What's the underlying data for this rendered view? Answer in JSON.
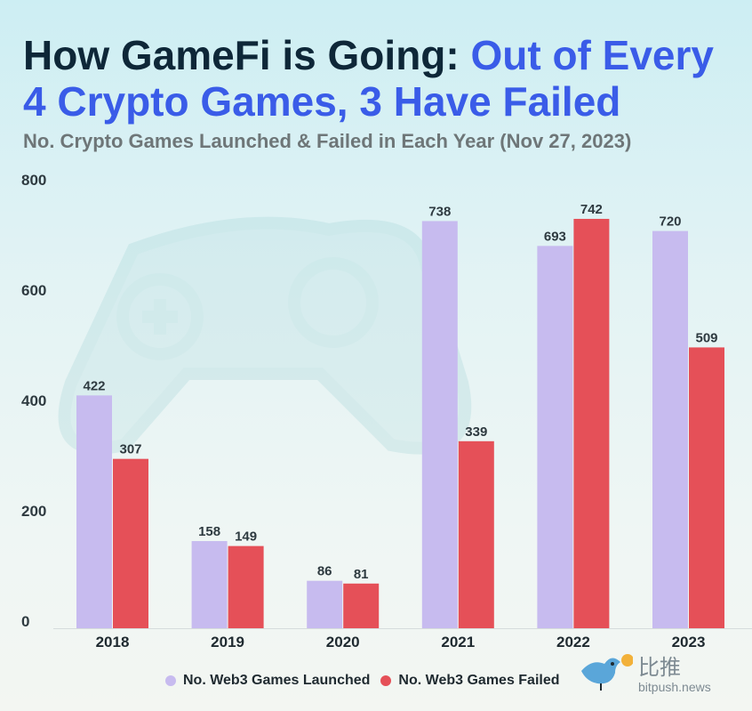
{
  "title": {
    "part1": "How GameFi is Going: ",
    "part2": "Out of Every 4 Crypto Games, 3 Have Failed"
  },
  "subtitle": "No. Crypto Games Launched & Failed in Each Year (Nov 27, 2023)",
  "colors": {
    "launched": "#c7bbef",
    "failed": "#e55058",
    "title_dark": "#0e2738",
    "title_accent": "#3a5ce8"
  },
  "chart_data": {
    "type": "bar",
    "title": "No. Crypto Games Launched & Failed in Each Year (Nov 27, 2023)",
    "xlabel": "",
    "ylabel": "",
    "ylim": [
      0,
      800
    ],
    "yticks": [
      0,
      200,
      400,
      600,
      800
    ],
    "categories": [
      "2018",
      "2019",
      "2020",
      "2021",
      "2022",
      "2023"
    ],
    "series": [
      {
        "name": "No. Web3 Games Launched",
        "values": [
          422,
          158,
          86,
          738,
          693,
          720
        ]
      },
      {
        "name": "No. Web3 Games Failed",
        "values": [
          307,
          149,
          81,
          339,
          742,
          509
        ]
      }
    ],
    "legend_position": "bottom-center"
  },
  "legend": {
    "launched": "No. Web3 Games Launched",
    "failed": "No. Web3 Games Failed"
  },
  "logo": {
    "name_cn": "比推",
    "name_en": "bitpush.news"
  }
}
